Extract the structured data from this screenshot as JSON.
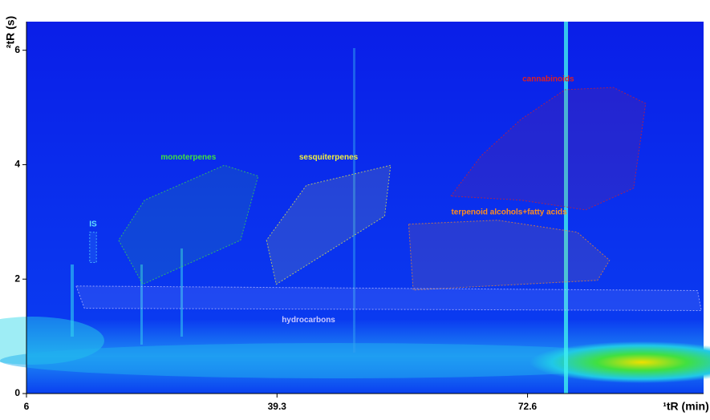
{
  "chart_data": {
    "type": "contour",
    "xlabel": "¹tR (min)",
    "ylabel": "²tR (s)",
    "xlim": [
      6,
      96
    ],
    "xticks": [
      6,
      39.3,
      72.6
    ],
    "ylim": [
      0,
      6.5
    ],
    "yticks": [
      0,
      2,
      4,
      6
    ],
    "regions": [
      {
        "label": "IS",
        "color": "#60e0ff",
        "polygon": [
          [
            14.4,
            2.82
          ],
          [
            15.3,
            2.82
          ],
          [
            15.3,
            2.29
          ],
          [
            14.4,
            2.29
          ]
        ]
      },
      {
        "label": "monoterpenes",
        "color": "#40e040",
        "polygon": [
          [
            18.25,
            2.68
          ],
          [
            21.45,
            1.91
          ],
          [
            34.45,
            2.68
          ],
          [
            36.8,
            3.8
          ],
          [
            32.3,
            3.99
          ],
          [
            21.7,
            3.38
          ]
        ]
      },
      {
        "label": "sesquiterpenes",
        "color": "#f0f040",
        "polygon": [
          [
            37.9,
            2.68
          ],
          [
            39.2,
            1.91
          ],
          [
            53.6,
            3.1
          ],
          [
            54.4,
            3.99
          ],
          [
            43.2,
            3.64
          ]
        ]
      },
      {
        "label": "terpenoid alcohols+fatty acids",
        "color": "#ff8c20",
        "polygon": [
          [
            56.8,
            2.96
          ],
          [
            57.4,
            1.81
          ],
          [
            81.9,
            1.98
          ],
          [
            83.5,
            2.33
          ],
          [
            79.2,
            2.82
          ],
          [
            68.6,
            3.03
          ]
        ]
      },
      {
        "label": "cannabinoids",
        "color": "#e02020",
        "polygon": [
          [
            62.4,
            3.45
          ],
          [
            66.4,
            4.15
          ],
          [
            71.7,
            4.79
          ],
          [
            77.6,
            5.31
          ],
          [
            84.0,
            5.35
          ],
          [
            88.3,
            5.07
          ],
          [
            86.7,
            3.59
          ],
          [
            80.3,
            3.21
          ],
          [
            71.7,
            3.38
          ]
        ]
      },
      {
        "label": "hydrocarbons",
        "color": "#c8c8ff",
        "polygon": [
          [
            12.6,
            1.88
          ],
          [
            13.7,
            1.49
          ],
          [
            95.7,
            1.45
          ],
          [
            95.2,
            1.8
          ]
        ]
      }
    ]
  }
}
